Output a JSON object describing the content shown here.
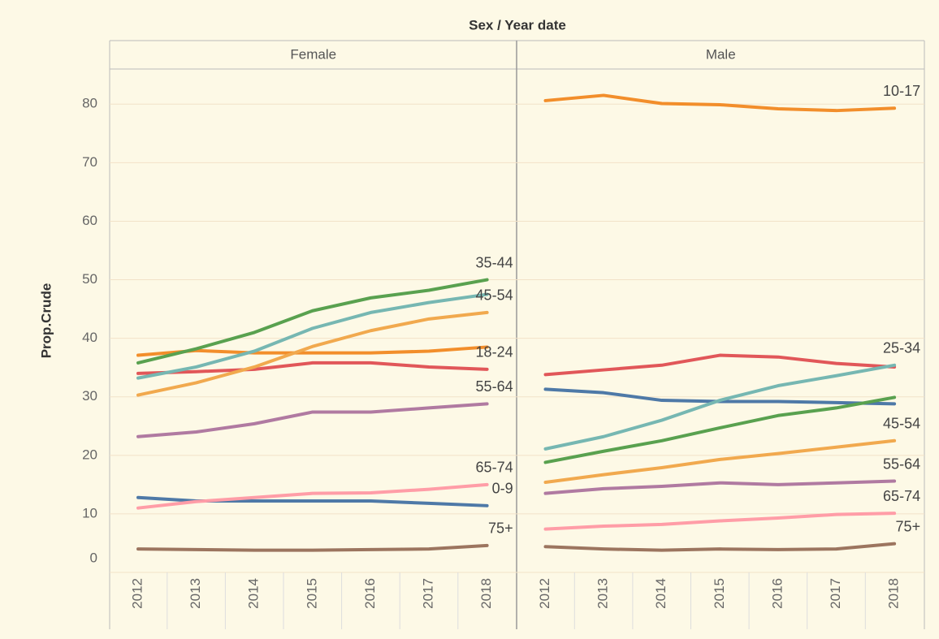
{
  "chart_data": {
    "type": "line",
    "title": "Sex / Year date",
    "y_label": "Prop.Crude",
    "categories": [
      "2012",
      "2013",
      "2014",
      "2015",
      "2016",
      "2017",
      "2018"
    ],
    "ylim": [
      0,
      86
    ],
    "yticks": [
      0,
      10,
      20,
      30,
      40,
      50,
      60,
      70,
      80
    ],
    "grid": true,
    "panels": [
      {
        "title": "Female",
        "series": [
          {
            "name": "0-9",
            "color": "#4e79a7",
            "values": [
              12.8,
              12.2,
              12.2,
              12.2,
              12.2,
              11.8,
              11.4
            ]
          },
          {
            "color": "#f28e2b",
            "values": [
              37.1,
              37.9,
              37.5,
              37.5,
              37.5,
              37.8,
              38.5
            ]
          },
          {
            "name": "18-24",
            "color": "#e15759",
            "values": [
              34.0,
              34.3,
              34.7,
              35.8,
              35.8,
              35.1,
              34.7
            ]
          },
          {
            "color": "#76b7b2",
            "values": [
              33.2,
              35.1,
              37.8,
              41.7,
              44.4,
              46.1,
              47.5
            ]
          },
          {
            "name": "35-44",
            "color": "#59a14f",
            "values": [
              35.8,
              38.2,
              41.0,
              44.7,
              46.9,
              48.2,
              50.0
            ]
          },
          {
            "name": "45-54",
            "color": "#f1a94e",
            "values": [
              30.3,
              32.4,
              35.1,
              38.6,
              41.3,
              43.3,
              44.4
            ]
          },
          {
            "name": "55-64",
            "color": "#b07aa1",
            "values": [
              23.2,
              24.0,
              25.4,
              27.4,
              27.4,
              28.1,
              28.8
            ]
          },
          {
            "name": "65-74",
            "color": "#ff9da7",
            "values": [
              11.0,
              12.1,
              12.8,
              13.5,
              13.6,
              14.2,
              15.0
            ]
          },
          {
            "name": "75+",
            "color": "#9c755f",
            "values": [
              4.0,
              3.9,
              3.8,
              3.8,
              3.9,
              4.0,
              4.6
            ]
          }
        ]
      },
      {
        "title": "Male",
        "series": [
          {
            "color": "#4e79a7",
            "values": [
              31.3,
              30.7,
              29.4,
              29.2,
              29.2,
              29.0,
              28.8
            ]
          },
          {
            "name": "10-17",
            "color": "#f28e2b",
            "values": [
              80.6,
              81.5,
              80.1,
              79.9,
              79.2,
              78.9,
              79.3
            ]
          },
          {
            "color": "#e15759",
            "values": [
              33.8,
              34.6,
              35.4,
              37.1,
              36.8,
              35.7,
              35.1
            ]
          },
          {
            "name": "25-34",
            "color": "#76b7b2",
            "values": [
              21.1,
              23.2,
              26.0,
              29.4,
              31.9,
              33.6,
              35.4
            ]
          },
          {
            "color": "#59a14f",
            "values": [
              18.8,
              20.7,
              22.5,
              24.7,
              26.8,
              28.1,
              29.9
            ]
          },
          {
            "name": "45-54",
            "color": "#f1a94e",
            "values": [
              15.4,
              16.7,
              17.9,
              19.3,
              20.3,
              21.4,
              22.5
            ]
          },
          {
            "name": "55-64",
            "color": "#b07aa1",
            "values": [
              13.5,
              14.3,
              14.7,
              15.3,
              15.0,
              15.3,
              15.6
            ]
          },
          {
            "name": "65-74",
            "color": "#ff9da7",
            "values": [
              7.4,
              7.9,
              8.2,
              8.8,
              9.3,
              9.9,
              10.1
            ]
          },
          {
            "name": "75+",
            "color": "#9c755f",
            "values": [
              4.4,
              4.0,
              3.8,
              4.0,
              3.9,
              4.0,
              4.9
            ]
          }
        ]
      }
    ]
  }
}
